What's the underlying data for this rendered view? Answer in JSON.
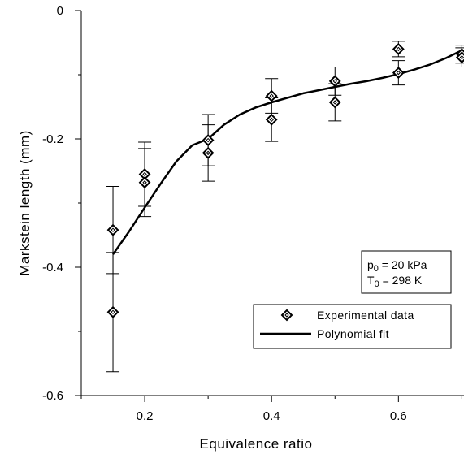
{
  "chart_data": {
    "type": "scatter",
    "title": "",
    "xlabel": "Equivalence ratio",
    "ylabel": "Markstein length (mm)",
    "xlim": [
      0.1,
      0.72
    ],
    "ylim": [
      -0.6,
      0.0
    ],
    "x_ticks": [
      0.2,
      0.4,
      0.6
    ],
    "x_tick_labels": [
      "0.2",
      "0.4",
      "0.6"
    ],
    "y_ticks": [
      0,
      -0.2,
      -0.4,
      -0.6
    ],
    "y_tick_labels": [
      "0",
      "-0.2",
      "-0.4",
      "-0.6"
    ],
    "grid": false,
    "legend_position": "bottom-right",
    "series": [
      {
        "name": "Experimental data",
        "type": "scatter",
        "marker": "diamond",
        "points": [
          {
            "x": 0.15,
            "y": -0.342,
            "err": 0.068
          },
          {
            "x": 0.15,
            "y": -0.47,
            "err": 0.093
          },
          {
            "x": 0.2,
            "y": -0.255,
            "err": 0.05
          },
          {
            "x": 0.2,
            "y": -0.268,
            "err": 0.053
          },
          {
            "x": 0.3,
            "y": -0.202,
            "err": 0.04
          },
          {
            "x": 0.3,
            "y": -0.222,
            "err": 0.044
          },
          {
            "x": 0.4,
            "y": -0.133,
            "err": 0.027
          },
          {
            "x": 0.4,
            "y": -0.17,
            "err": 0.034
          },
          {
            "x": 0.5,
            "y": -0.11,
            "err": 0.022
          },
          {
            "x": 0.5,
            "y": -0.143,
            "err": 0.029
          },
          {
            "x": 0.6,
            "y": -0.06,
            "err": 0.012
          },
          {
            "x": 0.6,
            "y": -0.097,
            "err": 0.019
          },
          {
            "x": 0.7,
            "y": -0.068,
            "err": 0.014
          },
          {
            "x": 0.7,
            "y": -0.073,
            "err": 0.015
          }
        ]
      },
      {
        "name": "Polynomial fit",
        "type": "line",
        "x": [
          0.15,
          0.175,
          0.2,
          0.225,
          0.25,
          0.275,
          0.3,
          0.325,
          0.35,
          0.375,
          0.4,
          0.425,
          0.45,
          0.475,
          0.5,
          0.525,
          0.55,
          0.575,
          0.6,
          0.625,
          0.65,
          0.675,
          0.7
        ],
        "y": [
          -0.38,
          -0.345,
          -0.307,
          -0.27,
          -0.235,
          -0.21,
          -0.2,
          -0.178,
          -0.162,
          -0.151,
          -0.143,
          -0.136,
          -0.129,
          -0.124,
          -0.119,
          -0.114,
          -0.11,
          -0.105,
          -0.099,
          -0.092,
          -0.084,
          -0.074,
          -0.062
        ]
      }
    ],
    "annotation": {
      "line1": "p",
      "line1_sub": "0",
      "line1_rest": " = 20 kPa",
      "line2": "T",
      "line2_sub": "0",
      "line2_rest": " = 298 K"
    },
    "colors": {
      "ink": "#000000",
      "background": "#ffffff"
    }
  }
}
